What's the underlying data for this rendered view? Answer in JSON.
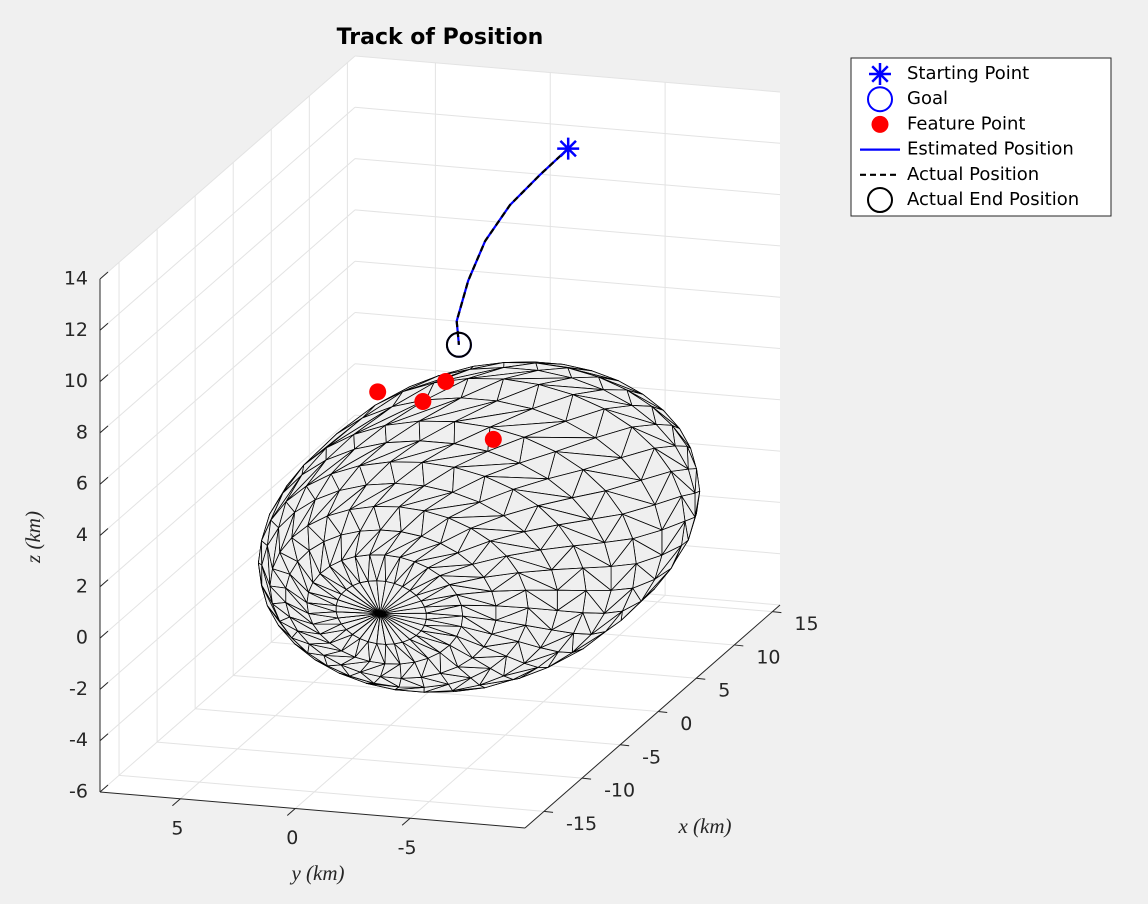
{
  "chart_data": {
    "type": "line3d",
    "title": "Track of Position",
    "xlabel": "x (km)",
    "ylabel": "y (km)",
    "zlabel": "z (km)",
    "xlim": [
      -17.5,
      16
    ],
    "ylim": [
      -10,
      8.5
    ],
    "zlim": [
      -6,
      14
    ],
    "xticks": [
      -15,
      -10,
      -5,
      0,
      5,
      10,
      15
    ],
    "yticks": [
      -5,
      0,
      5
    ],
    "zticks": [
      -6,
      -4,
      -2,
      0,
      2,
      4,
      6,
      8,
      10,
      12,
      14
    ],
    "grid": true,
    "legend_position": "northeastoutside",
    "series": [
      {
        "name": "Starting Point",
        "marker": "asterisk",
        "color": "#0000ff",
        "x": [
          9.3
        ],
        "y": [
          -3
        ],
        "z": [
          13.0
        ]
      },
      {
        "name": "Goal",
        "marker": "circle",
        "color": "#0000ff",
        "x": [
          4.0
        ],
        "y": [
          0
        ],
        "z": [
          6.5
        ]
      },
      {
        "name": "Feature Point",
        "marker": "filled-circle",
        "color": "#ff0000",
        "x": [
          5.4,
          8.3,
          5.3,
          5.5
        ],
        "y": [
          4,
          2,
          2,
          -1
        ],
        "z": [
          4.0,
          3.8,
          3.8,
          2.5
        ]
      },
      {
        "name": "Estimated Position",
        "line": "solid",
        "color": "#0000ff",
        "x": [
          9.3,
          6.8,
          4.07,
          2.0,
          1.3,
          1.6,
          4.0
        ],
        "y": [
          -3,
          -2.6,
          -2.2,
          -1.8,
          -1.3,
          -0.7,
          0
        ],
        "z": [
          13.0,
          12.6,
          12.1,
          11.2,
          9.8,
          8.1,
          6.5
        ]
      },
      {
        "name": "Actual Position",
        "line": "dashed",
        "color": "#000000",
        "x": [
          9.3,
          6.8,
          4.07,
          2.0,
          1.3,
          1.6,
          4.0
        ],
        "y": [
          -3,
          -2.6,
          -2.2,
          -1.8,
          -1.3,
          -0.7,
          0
        ],
        "z": [
          13.0,
          12.6,
          12.1,
          11.2,
          9.8,
          8.1,
          6.5
        ]
      },
      {
        "name": "Actual End Position",
        "marker": "circle",
        "color": "#000000",
        "x": [
          4.0
        ],
        "y": [
          0
        ],
        "z": [
          6.5
        ]
      }
    ]
  }
}
